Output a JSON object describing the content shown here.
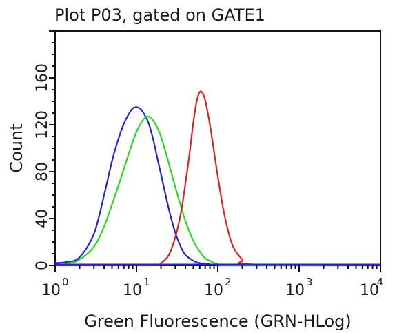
{
  "chart_data": {
    "type": "line",
    "title": "Plot P03, gated on GATE1",
    "xlabel": "Green Fluorescence (GRN-HLog)",
    "ylabel": "Count",
    "x_scale": "log",
    "xlim": [
      1,
      10000
    ],
    "ylim": [
      0,
      200
    ],
    "x_ticks": [
      {
        "value": 1,
        "base": "10",
        "exp": "0"
      },
      {
        "value": 10,
        "base": "10",
        "exp": "1"
      },
      {
        "value": 100,
        "base": "10",
        "exp": "2"
      },
      {
        "value": 1000,
        "base": "10",
        "exp": "3"
      },
      {
        "value": 10000,
        "base": "10",
        "exp": "4"
      }
    ],
    "y_ticks": [
      "0",
      "40",
      "80",
      "120",
      "160"
    ],
    "grid": false,
    "series": [
      {
        "color": "#2222dd",
        "x": [
          1,
          1.4,
          2,
          3,
          4,
          5,
          6,
          7,
          8,
          9,
          10,
          11,
          12,
          14,
          16,
          18,
          20,
          25,
          30,
          35,
          40,
          50,
          60,
          80,
          100,
          150,
          10000
        ],
        "y": [
          2,
          3,
          7,
          27,
          60,
          89,
          108,
          121,
          129,
          134,
          135,
          134,
          131,
          122,
          108,
          92,
          78,
          48,
          28,
          16,
          9,
          4,
          2,
          1,
          0,
          0,
          0
        ]
      },
      {
        "color": "#22dd22",
        "x": [
          1,
          1.5,
          2,
          3,
          4,
          5,
          6,
          8,
          10,
          12,
          13.5,
          15,
          17,
          20,
          25,
          30,
          40,
          50,
          60,
          70,
          80,
          100,
          150,
          10000
        ],
        "y": [
          0,
          2,
          5,
          16,
          33,
          52,
          68,
          95,
          114,
          124,
          127,
          126,
          121,
          110,
          87,
          67,
          38,
          21,
          12,
          6,
          4,
          1,
          0,
          0
        ]
      },
      {
        "color": "#dd2222",
        "x": [
          1,
          15,
          20,
          25,
          30,
          35,
          40,
          45,
          50,
          55,
          60,
          65,
          70,
          80,
          90,
          100,
          120,
          150,
          200,
          250,
          10000
        ],
        "y": [
          0,
          0,
          2,
          9,
          24,
          44,
          70,
          96,
          122,
          140,
          148,
          147,
          141,
          120,
          97,
          76,
          44,
          18,
          5,
          1,
          0
        ]
      }
    ]
  }
}
